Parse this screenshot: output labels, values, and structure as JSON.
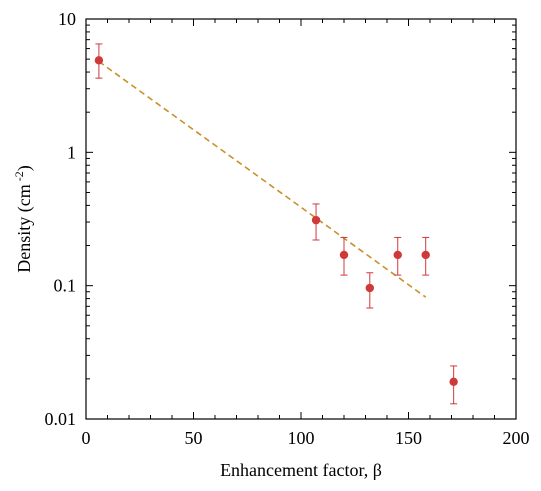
{
  "chart_data": {
    "type": "scatter",
    "title": "",
    "xlabel": "Enhancement factor, β",
    "ylabel": "Density (cm⁻²)",
    "ylabel_parts": {
      "main": "Density (cm",
      "sup": "-2",
      "close": ")"
    },
    "xlim": [
      0,
      200
    ],
    "ylim": [
      0.01,
      10
    ],
    "yscale": "log",
    "grid": false,
    "x_ticks": [
      0,
      50,
      100,
      150,
      200
    ],
    "x_tick_labels": [
      "0",
      "50",
      "100",
      "150",
      "200"
    ],
    "y_ticks": [
      0.01,
      0.1,
      1,
      10
    ],
    "y_tick_labels": [
      "0.01",
      "0.1",
      "1",
      "10"
    ],
    "series": [
      {
        "points": [
          {
            "x": 6,
            "y": 4.9,
            "err_low": 3.6,
            "err_high": 6.5
          },
          {
            "x": 107,
            "y": 0.31,
            "err_low": 0.22,
            "err_high": 0.41
          },
          {
            "x": 120,
            "y": 0.17,
            "err_low": 0.12,
            "err_high": 0.23
          },
          {
            "x": 132,
            "y": 0.096,
            "err_low": 0.068,
            "err_high": 0.125
          },
          {
            "x": 145,
            "y": 0.17,
            "err_low": 0.12,
            "err_high": 0.23
          },
          {
            "x": 158,
            "y": 0.17,
            "err_low": 0.12,
            "err_high": 0.23
          },
          {
            "x": 171,
            "y": 0.019,
            "err_low": 0.013,
            "err_high": 0.025
          }
        ],
        "color": "#d0393a"
      }
    ],
    "fit_line": {
      "style": "dashed",
      "color": "#c8912a",
      "points": [
        {
          "x": 6,
          "y": 4.8
        },
        {
          "x": 158,
          "y": 0.082
        }
      ]
    }
  }
}
